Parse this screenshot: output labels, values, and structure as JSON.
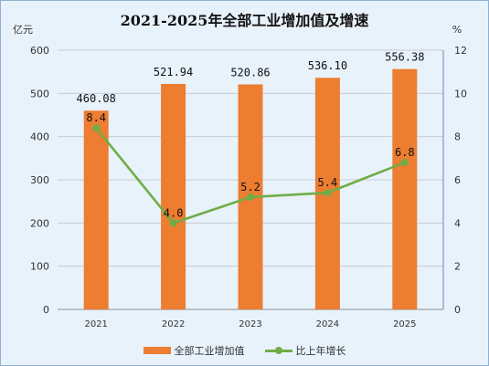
{
  "chart_data": {
    "type": "bar",
    "title": "2021-2025年全部工业增加值及增速",
    "categories": [
      "2021",
      "2022",
      "2023",
      "2024",
      "2025"
    ],
    "y_left": {
      "label": "亿元",
      "range": [
        0,
        600
      ],
      "ticks": [
        "0",
        "100",
        "200",
        "300",
        "400",
        "500",
        "600"
      ]
    },
    "y_right": {
      "label": "%",
      "range": [
        0,
        12
      ],
      "ticks": [
        "0",
        "2",
        "4",
        "6",
        "8",
        "10",
        "12"
      ]
    },
    "series": [
      {
        "name": "全部工业增加值",
        "kind": "bar",
        "axis": "left",
        "color": "#ed7d31",
        "values": [
          460.08,
          521.94,
          520.86,
          536.1,
          556.38
        ],
        "labels": [
          "460.08",
          "521.94",
          "520.86",
          "536.10",
          "556.38"
        ]
      },
      {
        "name": "比上年增长",
        "kind": "line",
        "axis": "right",
        "color": "#70ad47",
        "values": [
          8.4,
          4.0,
          5.2,
          5.4,
          6.8
        ],
        "labels": [
          "8.4",
          "4.0",
          "5.2",
          "5.4",
          "6.8"
        ]
      }
    ],
    "grid": true,
    "legend": "bottom"
  }
}
